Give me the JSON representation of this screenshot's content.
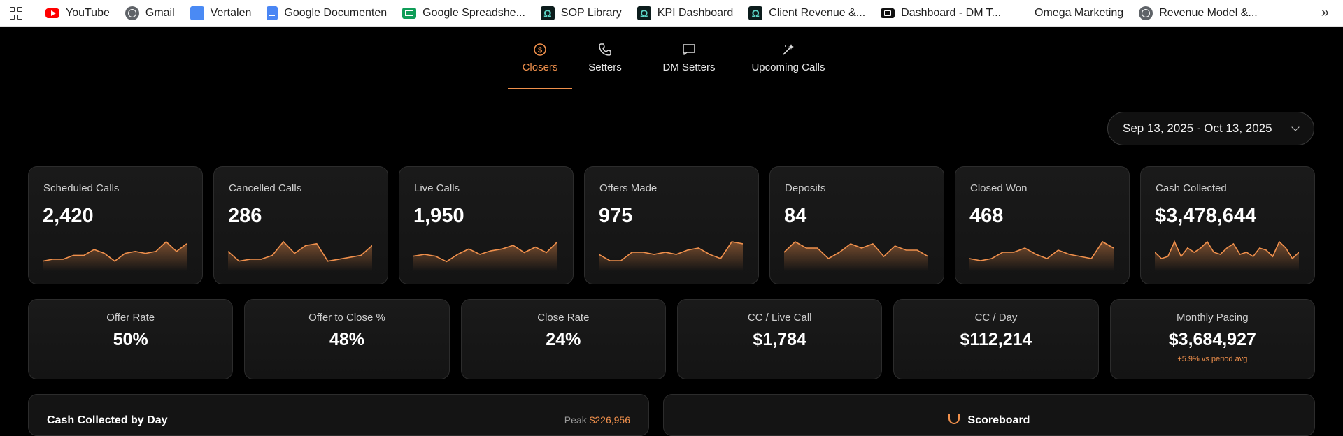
{
  "bookmarks": [
    {
      "label": "YouTube",
      "icon": "youtube-icon"
    },
    {
      "label": "Gmail",
      "icon": "globe-icon"
    },
    {
      "label": "Vertalen",
      "icon": "translate-icon"
    },
    {
      "label": "Google Documenten",
      "icon": "docs-icon"
    },
    {
      "label": "Google Spreadshe...",
      "icon": "sheets-icon"
    },
    {
      "label": "SOP Library",
      "icon": "omega-icon"
    },
    {
      "label": "KPI Dashboard",
      "icon": "omega-icon"
    },
    {
      "label": "Client Revenue &...",
      "icon": "omega-icon"
    },
    {
      "label": "Dashboard - DM T...",
      "icon": "dashboard-icon"
    },
    {
      "label": "Omega Marketing",
      "icon": ""
    },
    {
      "label": "Revenue Model &...",
      "icon": "globe-icon"
    }
  ],
  "tabs": {
    "closers": "Closers",
    "setters": "Setters",
    "dm_setters": "DM Setters",
    "upcoming_calls": "Upcoming Calls"
  },
  "date_range": "Sep 13, 2025 - Oct 13, 2025",
  "accent_color": "#f0904c",
  "kpis": [
    {
      "label": "Scheduled Calls",
      "value": "2,420",
      "spark": [
        3,
        4,
        4,
        6,
        6,
        9,
        7,
        3,
        7,
        8,
        7,
        8,
        13,
        8,
        12
      ]
    },
    {
      "label": "Cancelled Calls",
      "value": "286",
      "spark": [
        8,
        3,
        4,
        4,
        6,
        13,
        7,
        11,
        12,
        3,
        4,
        5,
        6,
        11
      ]
    },
    {
      "label": "Live Calls",
      "value": "1,950",
      "spark": [
        6,
        7,
        6,
        3,
        7,
        10,
        7,
        9,
        10,
        12,
        8,
        11,
        8,
        14
      ]
    },
    {
      "label": "Offers Made",
      "value": "975",
      "spark": [
        6,
        3,
        3,
        7,
        7,
        6,
        7,
        6,
        8,
        9,
        6,
        4,
        12,
        11
      ]
    },
    {
      "label": "Deposits",
      "value": "84",
      "spark": [
        7,
        12,
        9,
        9,
        4,
        7,
        11,
        9,
        11,
        5,
        10,
        8,
        8,
        5
      ]
    },
    {
      "label": "Closed Won",
      "value": "468",
      "spark": [
        4,
        3,
        4,
        7,
        7,
        9,
        6,
        4,
        8,
        6,
        5,
        4,
        12,
        9
      ]
    },
    {
      "label": "Cash Collected",
      "value": "$3,478,644",
      "spark": [
        7,
        4,
        5,
        12,
        5,
        9,
        7,
        9,
        12,
        7,
        6,
        9,
        11,
        6,
        7,
        5,
        9,
        8,
        5,
        12,
        9,
        4,
        7
      ]
    }
  ],
  "kpis2": [
    {
      "label": "Offer Rate",
      "value": "50%",
      "sub": ""
    },
    {
      "label": "Offer to Close %",
      "value": "48%",
      "sub": ""
    },
    {
      "label": "Close Rate",
      "value": "24%",
      "sub": ""
    },
    {
      "label": "CC / Live Call",
      "value": "$1,784",
      "sub": ""
    },
    {
      "label": "CC / Day",
      "value": "$112,214",
      "sub": ""
    },
    {
      "label": "Monthly Pacing",
      "value": "$3,684,927",
      "sub": "+5.9% vs period avg"
    }
  ],
  "cash_panel": {
    "title": "Cash Collected by Day",
    "peak_label": "Peak",
    "peak_value": "$226,956"
  },
  "score_panel": {
    "title": "Scoreboard"
  }
}
